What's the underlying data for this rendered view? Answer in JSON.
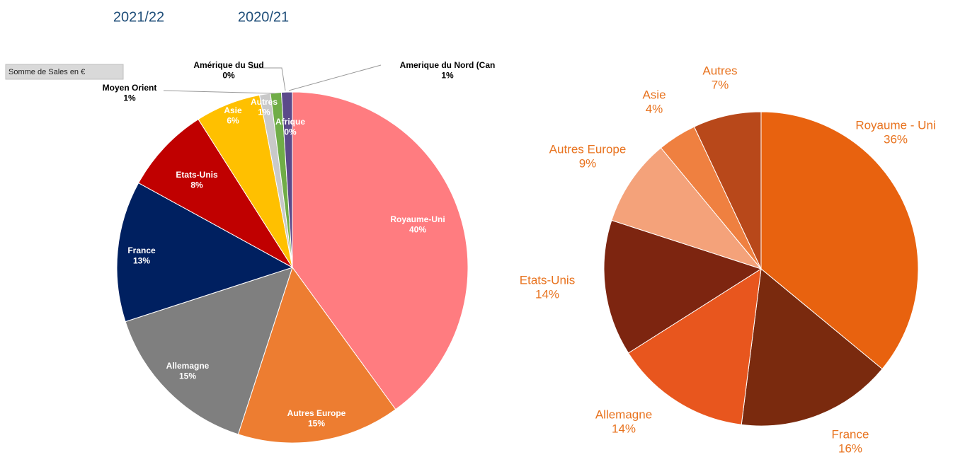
{
  "field_button": "Somme de Sales en €",
  "chart_data": [
    {
      "type": "pie",
      "title": "2021/22",
      "categories": [
        "Royaume-Uni",
        "Autres Europe",
        "Allemagne",
        "France",
        "Etats-Unis",
        "Asie",
        "Autres",
        "Moyen Orient",
        "Amérique du Sud",
        "Amerique du Nord (Can",
        "Afrique"
      ],
      "values": [
        40,
        15,
        15,
        13,
        8,
        6,
        1,
        1,
        0,
        1,
        0
      ],
      "value_labels": [
        "40%",
        "15%",
        "15%",
        "13%",
        "8%",
        "6%",
        "1%",
        "1%",
        "0%",
        "1%",
        "0%"
      ],
      "colors": [
        "#ff7c80",
        "#ed7d31",
        "#7f7f7f",
        "#002060",
        "#c00000",
        "#ffc000",
        "#c9c9c9",
        "#70ad47",
        "#44546a",
        "#5b4a8a",
        "#bf8f00"
      ]
    },
    {
      "type": "pie",
      "title": "2020/21",
      "categories": [
        "Royaume - Uni",
        "France",
        "Allemagne",
        "Etats-Unis",
        "Autres Europe",
        "Asie",
        "Autres"
      ],
      "values": [
        36,
        16,
        14,
        14,
        9,
        4,
        7
      ],
      "value_labels": [
        "36%",
        "16%",
        "14%",
        "14%",
        "9%",
        "4%",
        "7%"
      ],
      "colors": [
        "#e8620f",
        "#7a2a0e",
        "#e8561e",
        "#7d2510",
        "#f4a27a",
        "#ef8040",
        "#b8481a"
      ]
    }
  ]
}
